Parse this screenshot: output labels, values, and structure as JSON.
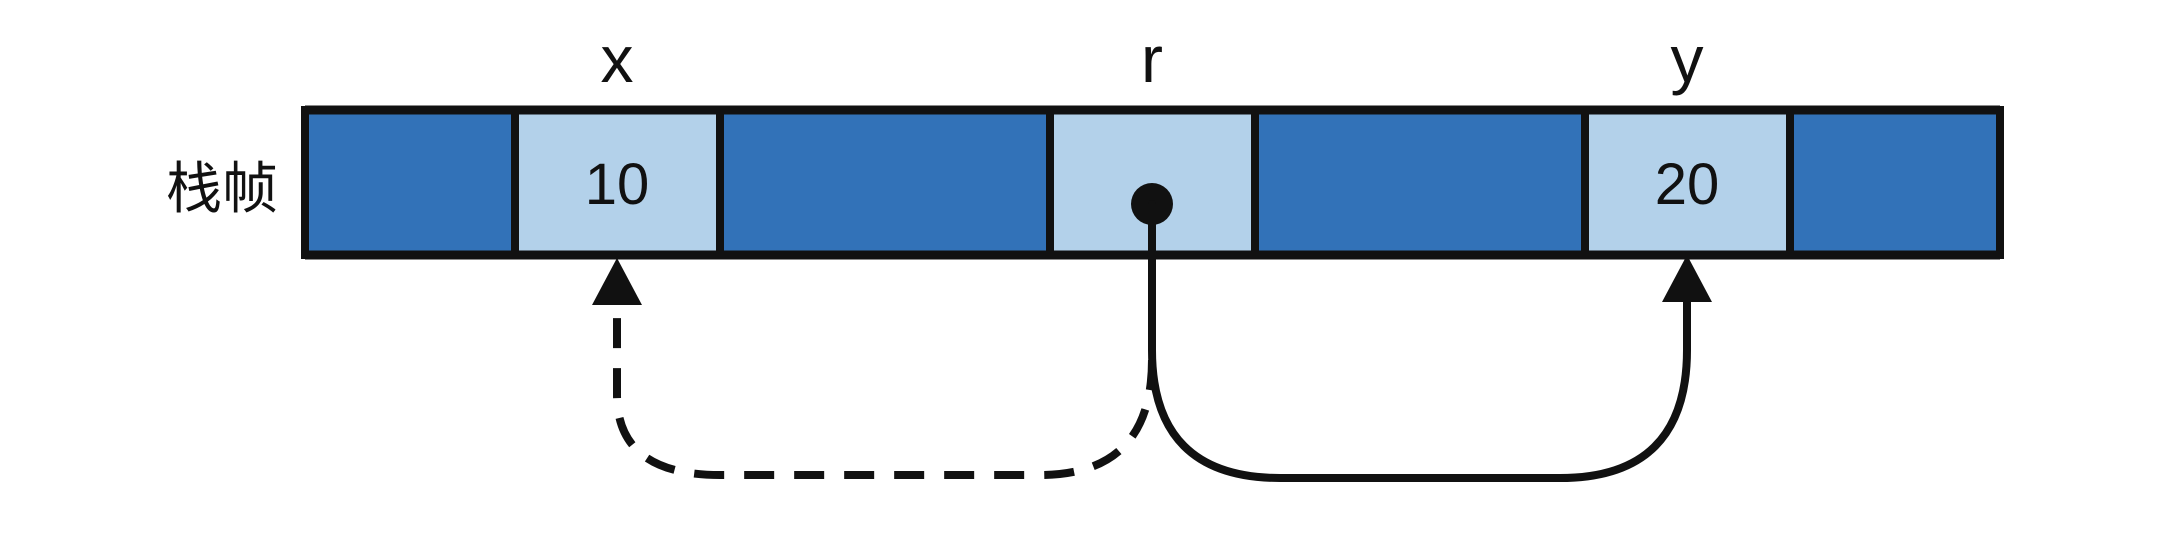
{
  "diagram": {
    "row_label": "栈帧",
    "variables": {
      "x": "x",
      "r": "r",
      "y": "y"
    },
    "cells": [
      {
        "id": "slot-1",
        "kind": "empty"
      },
      {
        "id": "slot-x",
        "kind": "value",
        "value": "10",
        "variable": "x"
      },
      {
        "id": "slot-3",
        "kind": "empty"
      },
      {
        "id": "slot-r",
        "kind": "pointer",
        "variable": "r"
      },
      {
        "id": "slot-5",
        "kind": "empty"
      },
      {
        "id": "slot-y",
        "kind": "value",
        "value": "20",
        "variable": "y"
      },
      {
        "id": "slot-7",
        "kind": "empty"
      }
    ],
    "arrows": [
      {
        "from": "r",
        "to": "x",
        "style": "dashed"
      },
      {
        "from": "r",
        "to": "y",
        "style": "solid"
      }
    ],
    "colors": {
      "empty_cell": "#3272b8",
      "value_cell": "#b3d1ea",
      "stroke": "#111111",
      "background": "#ffffff"
    }
  }
}
